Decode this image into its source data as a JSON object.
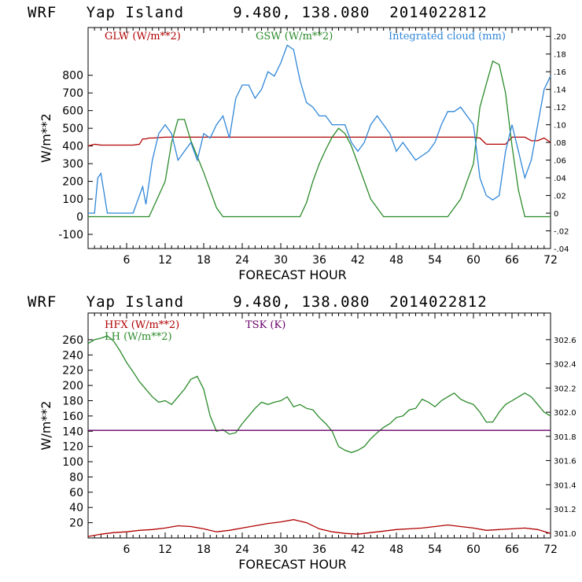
{
  "header": {
    "model": "WRF",
    "location": "Yap Island",
    "coords": "9.480, 138.080",
    "init": "2014022812"
  },
  "chart_data": [
    {
      "type": "line",
      "xlabel": "FORECAST HOUR",
      "ylabel": "W/m**2",
      "x_ticks": [
        6,
        12,
        18,
        24,
        30,
        36,
        42,
        48,
        54,
        60,
        66,
        72
      ],
      "xlim": [
        0,
        72
      ],
      "ylim": [
        -180,
        1070
      ],
      "y_ticks": [
        -100,
        0,
        100,
        200,
        300,
        400,
        500,
        600,
        700,
        800
      ],
      "y2lim": [
        -0.04,
        0.21
      ],
      "y2_ticks": [
        ".20",
        ".18",
        ".16",
        ".14",
        ".12",
        ".10",
        ".08",
        ".06",
        ".04",
        ".02",
        "0",
        "-.02",
        "-.04"
      ],
      "series": [
        {
          "name": "GLW (W/m**2)",
          "color": "#b00000",
          "axis": "left",
          "x": [
            0,
            1,
            2,
            3,
            4,
            5,
            6,
            7,
            8,
            8.5,
            9,
            9.5,
            10,
            12,
            15,
            18,
            21,
            24,
            27,
            30,
            33,
            36,
            39,
            42,
            45,
            48,
            51,
            54,
            57,
            60,
            61,
            62,
            63,
            64,
            65,
            66,
            67,
            68,
            69,
            70,
            71,
            72
          ],
          "values": [
            400,
            410,
            405,
            405,
            405,
            405,
            405,
            405,
            410,
            440,
            440,
            445,
            445,
            450,
            450,
            450,
            450,
            450,
            450,
            450,
            450,
            450,
            450,
            450,
            450,
            450,
            450,
            450,
            450,
            450,
            445,
            410,
            410,
            410,
            410,
            450,
            450,
            450,
            430,
            430,
            445,
            420
          ]
        },
        {
          "name": "GSW (W/m**2)",
          "color": "#2a8a2a",
          "axis": "left",
          "x": [
            0,
            9.5,
            12,
            13,
            14,
            15,
            16,
            18,
            20,
            21,
            24,
            27,
            30,
            33,
            34,
            35,
            36,
            37,
            38,
            39,
            40,
            41,
            42,
            43,
            44,
            45,
            46,
            56,
            58,
            60,
            61,
            62,
            63,
            64,
            65,
            66,
            67,
            68,
            72
          ],
          "values": [
            0,
            0,
            200,
            420,
            550,
            550,
            430,
            250,
            50,
            0,
            0,
            0,
            0,
            0,
            80,
            200,
            300,
            380,
            450,
            500,
            470,
            400,
            300,
            200,
            100,
            50,
            0,
            0,
            100,
            300,
            620,
            750,
            880,
            860,
            700,
            400,
            150,
            0,
            0
          ]
        },
        {
          "name": "Integrated cloud (mm)",
          "color": "#2f86d8",
          "axis": "right",
          "x": [
            0,
            1,
            1.5,
            2,
            3,
            7,
            8,
            8.5,
            9,
            10,
            11,
            12,
            13,
            14,
            15,
            16,
            17,
            18,
            19,
            20,
            21,
            22,
            23,
            24,
            25,
            26,
            27,
            28,
            29,
            30,
            31,
            32,
            33,
            34,
            35,
            36,
            37,
            38,
            39,
            40,
            41,
            42,
            43,
            44,
            45,
            46,
            47,
            48,
            49,
            50,
            51,
            52,
            53,
            54,
            55,
            56,
            57,
            58,
            59,
            60,
            61,
            62,
            63,
            64,
            65,
            66,
            67,
            68,
            69,
            70,
            71,
            72
          ],
          "values": [
            0,
            0,
            0.04,
            0.045,
            0,
            0,
            0.02,
            0.03,
            0.01,
            0.06,
            0.09,
            0.1,
            0.09,
            0.06,
            0.07,
            0.08,
            0.06,
            0.09,
            0.085,
            0.1,
            0.11,
            0.085,
            0.13,
            0.145,
            0.145,
            0.13,
            0.14,
            0.16,
            0.155,
            0.17,
            0.19,
            0.185,
            0.15,
            0.125,
            0.12,
            0.11,
            0.11,
            0.1,
            0.1,
            0.1,
            0.08,
            0.07,
            0.08,
            0.1,
            0.11,
            0.1,
            0.09,
            0.07,
            0.08,
            0.07,
            0.06,
            0.065,
            0.07,
            0.08,
            0.1,
            0.115,
            0.115,
            0.12,
            0.11,
            0.1,
            0.04,
            0.02,
            0.015,
            0.02,
            0.07,
            0.1,
            0.07,
            0.04,
            0.06,
            0.1,
            0.14,
            0.155
          ]
        }
      ]
    },
    {
      "type": "line",
      "xlabel": "FORECAST HOUR",
      "ylabel": "W/m**2",
      "x_ticks": [
        6,
        12,
        18,
        24,
        30,
        36,
        42,
        48,
        54,
        60,
        66,
        72
      ],
      "xlim": [
        0,
        72
      ],
      "ylim": [
        0,
        295
      ],
      "y_ticks": [
        20,
        40,
        60,
        80,
        100,
        120,
        140,
        160,
        180,
        200,
        220,
        240,
        260
      ],
      "y2lim": [
        300.96,
        302.82
      ],
      "y2_ticks": [
        "302.6",
        "302.4",
        "302.2",
        "302.0",
        "301.8",
        "301.6",
        "301.4",
        "301.2",
        "301.0"
      ],
      "series": [
        {
          "name": "HFX (W/m**2)",
          "color": "#b00000",
          "axis": "left",
          "x": [
            0,
            2,
            4,
            6,
            8,
            10,
            12,
            14,
            16,
            18,
            20,
            22,
            24,
            26,
            28,
            30,
            32,
            34,
            36,
            38,
            40,
            42,
            44,
            46,
            48,
            50,
            52,
            54,
            56,
            58,
            60,
            62,
            64,
            66,
            68,
            70,
            72
          ],
          "values": [
            2,
            5,
            7,
            8,
            10,
            11,
            13,
            16,
            15,
            12,
            8,
            10,
            13,
            16,
            19,
            21,
            24,
            20,
            12,
            8,
            6,
            5,
            7,
            9,
            11,
            12,
            13,
            15,
            17,
            15,
            13,
            10,
            11,
            12,
            13,
            11,
            6
          ]
        },
        {
          "name": "LH (W/m**2)",
          "color": "#2a8a2a",
          "axis": "left",
          "x": [
            0,
            1,
            2,
            3,
            4,
            5,
            6,
            7,
            8,
            9,
            10,
            11,
            12,
            13,
            14,
            15,
            16,
            17,
            18,
            19,
            20,
            21,
            22,
            23,
            24,
            25,
            26,
            27,
            28,
            29,
            30,
            31,
            32,
            33,
            34,
            35,
            36,
            37,
            38,
            39,
            40,
            41,
            42,
            43,
            44,
            45,
            46,
            47,
            48,
            49,
            50,
            51,
            52,
            53,
            54,
            55,
            56,
            57,
            58,
            59,
            60,
            61,
            62,
            63,
            64,
            65,
            66,
            67,
            68,
            69,
            70,
            71,
            72
          ],
          "values": [
            255,
            260,
            262,
            265,
            258,
            245,
            230,
            218,
            205,
            195,
            185,
            178,
            180,
            175,
            185,
            195,
            208,
            212,
            195,
            160,
            140,
            142,
            136,
            138,
            150,
            160,
            170,
            178,
            175,
            178,
            180,
            185,
            172,
            175,
            170,
            168,
            158,
            150,
            140,
            120,
            115,
            112,
            115,
            120,
            130,
            138,
            145,
            150,
            158,
            160,
            168,
            170,
            182,
            178,
            172,
            180,
            185,
            190,
            182,
            178,
            175,
            165,
            152,
            152,
            165,
            175,
            180,
            185,
            190,
            185,
            175,
            165,
            160
          ]
        },
        {
          "name": "TSK (K)",
          "color": "#660066",
          "axis": "right",
          "x": [
            0,
            72
          ],
          "values": [
            301.85,
            301.85
          ]
        }
      ]
    }
  ]
}
